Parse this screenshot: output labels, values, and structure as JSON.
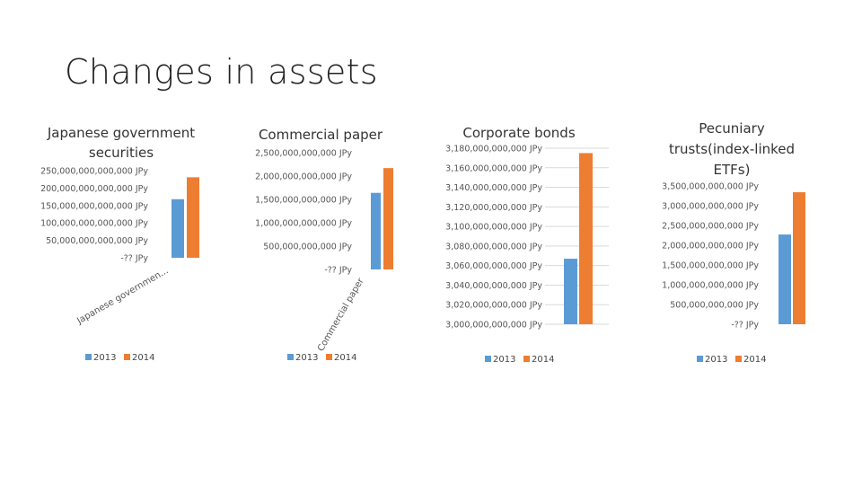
{
  "slide": {
    "title": "Changes in assets"
  },
  "colors": {
    "2013": "#5B9BD5",
    "2014": "#ED7D31",
    "gridline": "#D9D9D9"
  },
  "chart_data": [
    {
      "type": "bar",
      "title": [
        "Japanese government",
        "securities"
      ],
      "categories": [
        "Japanese governmen..."
      ],
      "series": [
        {
          "name": "2013",
          "values": [
            168000000000000
          ]
        },
        {
          "name": "2014",
          "values": [
            231000000000000
          ]
        }
      ],
      "ylim": [
        0,
        250000000000000
      ],
      "yticks": [
        0,
        50000000000000,
        100000000000000,
        150000000000000,
        200000000000000,
        250000000000000
      ],
      "ytick_labels": [
        "-?? JPy",
        "50,000,000,000,000 JPy",
        "100,000,000,000,000 JPy",
        "150,000,000,000,000 JPy",
        "200,000,000,000,000 JPy",
        "250,000,000,000,000 JPy"
      ],
      "grid": false,
      "legend": "bottom"
    },
    {
      "type": "bar",
      "title": [
        "Commercial paper"
      ],
      "categories": [
        "Commercial paper"
      ],
      "series": [
        {
          "name": "2013",
          "values": [
            1640000000000
          ]
        },
        {
          "name": "2014",
          "values": [
            2170000000000
          ]
        }
      ],
      "ylim": [
        0,
        2500000000000
      ],
      "yticks": [
        0,
        500000000000,
        1000000000000,
        1500000000000,
        2000000000000,
        2500000000000
      ],
      "ytick_labels": [
        "-?? JPy",
        "500,000,000,000 JPy",
        "1,000,000,000,000 JPy",
        "1,500,000,000,000 JPy",
        "2,000,000,000,000 JPy",
        "2,500,000,000,000 JPy"
      ],
      "grid": false,
      "legend": "bottom"
    },
    {
      "type": "bar",
      "title": [
        "Corporate bonds"
      ],
      "categories": [
        ""
      ],
      "series": [
        {
          "name": "2013",
          "values": [
            3067000000000
          ]
        },
        {
          "name": "2014",
          "values": [
            3175000000000
          ]
        }
      ],
      "ylim": [
        3000000000000,
        3180000000000
      ],
      "yticks": [
        3000000000000,
        3020000000000,
        3040000000000,
        3060000000000,
        3080000000000,
        3100000000000,
        3120000000000,
        3140000000000,
        3160000000000,
        3180000000000
      ],
      "ytick_labels": [
        "3,000,000,000,000 JPy",
        "3,020,000,000,000 JPy",
        "3,040,000,000,000 JPy",
        "3,060,000,000,000 JPy",
        "3,080,000,000,000 JPy",
        "3,100,000,000,000 JPy",
        "3,120,000,000,000 JPy",
        "3,140,000,000,000 JPy",
        "3,160,000,000,000 JPy",
        "3,180,000,000,000 JPy"
      ],
      "grid": true,
      "legend": "bottom"
    },
    {
      "type": "bar",
      "title": [
        "Pecuniary",
        "trusts(index-linked",
        "ETFs)"
      ],
      "categories": [
        ""
      ],
      "series": [
        {
          "name": "2013",
          "values": [
            2270000000000
          ]
        },
        {
          "name": "2014",
          "values": [
            3340000000000
          ]
        }
      ],
      "ylim": [
        0,
        3500000000000
      ],
      "yticks": [
        0,
        500000000000,
        1000000000000,
        1500000000000,
        2000000000000,
        2500000000000,
        3000000000000,
        3500000000000
      ],
      "ytick_labels": [
        "-?? JPy",
        "500,000,000,000 JPy",
        "1,000,000,000,000 JPy",
        "1,500,000,000,000 JPy",
        "2,000,000,000,000 JPy",
        "2,500,000,000,000 JPy",
        "3,000,000,000,000 JPy",
        "3,500,000,000,000 JPy"
      ],
      "grid": false,
      "legend": "bottom"
    }
  ]
}
